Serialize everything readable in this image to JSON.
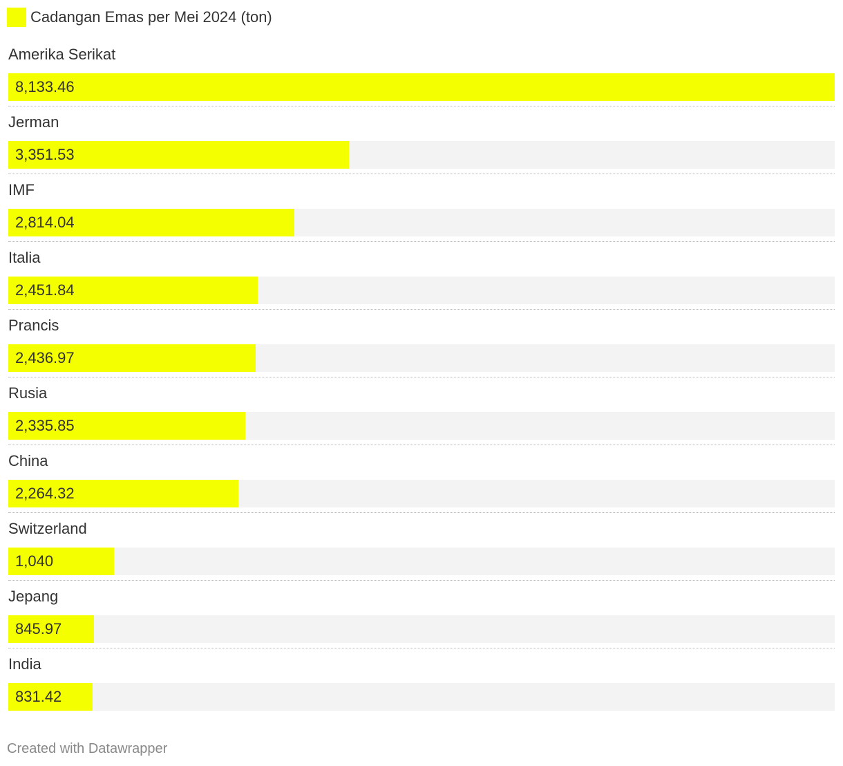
{
  "legend": {
    "label": "Cadangan Emas per Mei 2024 (ton)",
    "color": "#f4ff00"
  },
  "colors": {
    "bar": "#f4ff00",
    "track": "#f3f3f3",
    "text": "#333333"
  },
  "chart_data": {
    "type": "bar",
    "orientation": "horizontal",
    "series": [
      {
        "name": "Cadangan Emas per Mei 2024 (ton)"
      }
    ],
    "categories": [
      "Amerika Serikat",
      "Jerman",
      "IMF",
      "Italia",
      "Prancis",
      "Rusia",
      "China",
      "Switzerland",
      "Jepang",
      "India"
    ],
    "values": [
      8133.46,
      3351.53,
      2814.04,
      2451.84,
      2436.97,
      2335.85,
      2264.32,
      1040,
      845.97,
      831.42
    ],
    "value_labels": [
      "8,133.46",
      "3,351.53",
      "2,814.04",
      "2,451.84",
      "2,436.97",
      "2,335.85",
      "2,264.32",
      "1,040",
      "845.97",
      "831.42"
    ],
    "xlim": [
      0,
      8133.46
    ],
    "grid": false,
    "legend_position": "top-left"
  },
  "footer": {
    "credit": "Created with Datawrapper"
  }
}
